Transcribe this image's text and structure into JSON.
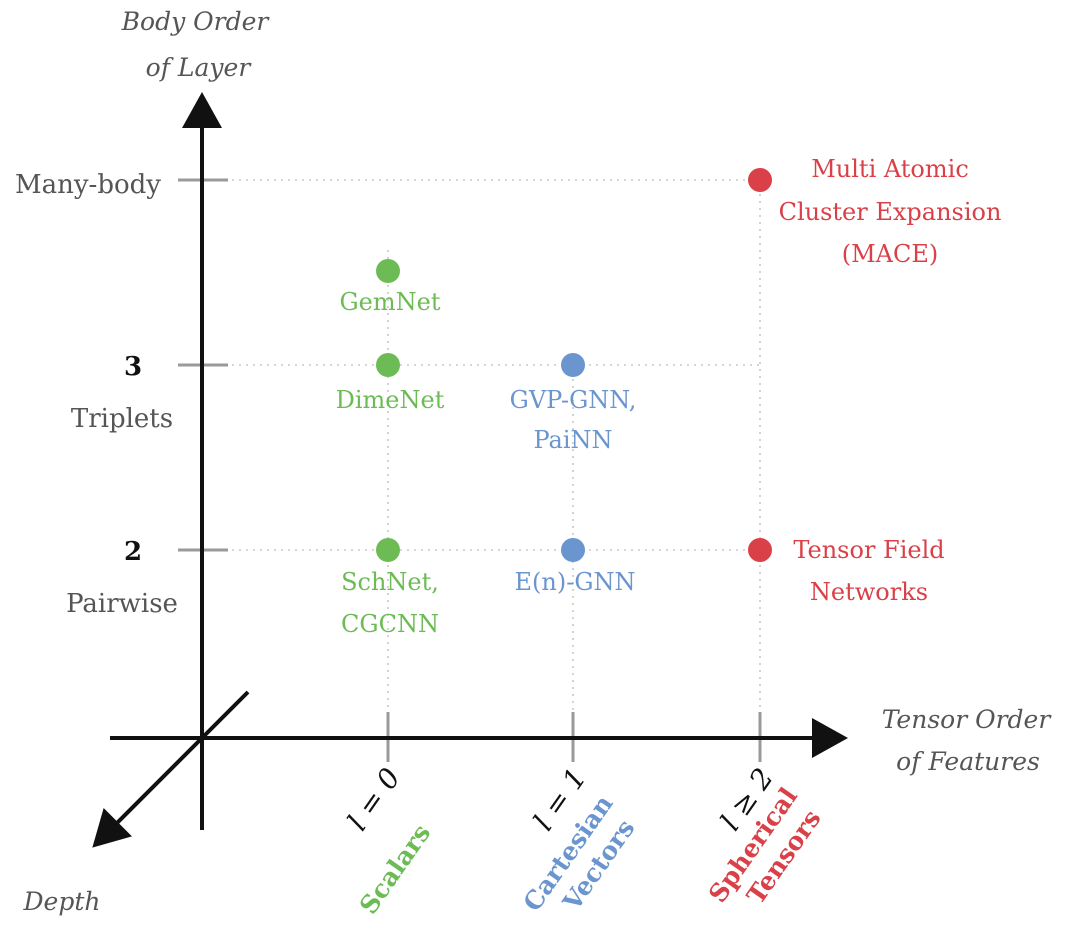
{
  "axes": {
    "y_title": [
      "Body Order",
      "of Layer"
    ],
    "x_title": [
      "Tensor Order",
      "of Features"
    ],
    "z_title": "Depth"
  },
  "y_levels": [
    {
      "label": "Many-body",
      "bold": false
    },
    {
      "number": "3",
      "label": "Triplets"
    },
    {
      "number": "2",
      "label": "Pairwise"
    }
  ],
  "x_levels": [
    {
      "math": "l = 0",
      "category": [
        "Scalars"
      ],
      "color": "#6cbb55"
    },
    {
      "math": "l = 1",
      "category": [
        "Cartesian",
        "Vectors"
      ],
      "color": "#6a95cf"
    },
    {
      "math": "l ≥ 2",
      "category": [
        "Spherical",
        "Tensors"
      ],
      "color": "#d94047"
    }
  ],
  "models": [
    {
      "name": [
        "GemNet"
      ],
      "color": "#6cbb55"
    },
    {
      "name": [
        "DimeNet"
      ],
      "color": "#6cbb55"
    },
    {
      "name": [
        "SchNet,",
        "CGCNN"
      ],
      "color": "#6cbb55"
    },
    {
      "name": [
        "GVP-GNN,",
        "PaiNN"
      ],
      "color": "#6a95cf"
    },
    {
      "name": [
        "E(n)-GNN"
      ],
      "color": "#6a95cf"
    },
    {
      "name": [
        "Multi Atomic",
        "Cluster Expansion",
        "(MACE)"
      ],
      "color": "#d94047"
    },
    {
      "name": [
        "Tensor Field",
        "Networks"
      ],
      "color": "#d94047"
    }
  ]
}
